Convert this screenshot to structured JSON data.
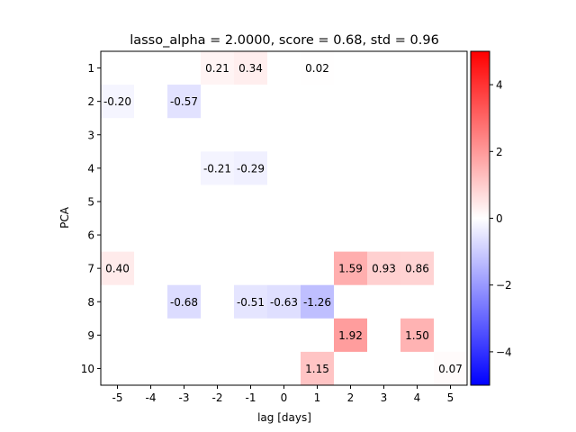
{
  "chart_data": {
    "type": "heatmap",
    "title": "lasso_alpha = 2.0000, score = 0.68, std = 0.96",
    "xlabel": "lag [days]",
    "ylabel": "PCA",
    "x_ticks": [
      -5,
      -4,
      -3,
      -2,
      -1,
      0,
      1,
      2,
      3,
      4,
      5
    ],
    "y_ticks": [
      1,
      2,
      3,
      4,
      5,
      6,
      7,
      8,
      9,
      10
    ],
    "colormap": "bwr",
    "color_range": [
      -5,
      5
    ],
    "colorbar_ticks": [
      4,
      2,
      0,
      -2,
      -4
    ],
    "colorbar_tick_labels": [
      "4",
      "2",
      "0",
      "−2",
      "−4"
    ],
    "cells": [
      {
        "x": -2,
        "y": 1,
        "value": 0.21,
        "label": "0.21"
      },
      {
        "x": -1,
        "y": 1,
        "value": 0.34,
        "label": "0.34"
      },
      {
        "x": 1,
        "y": 1,
        "value": 0.02,
        "label": "0.02"
      },
      {
        "x": -5,
        "y": 2,
        "value": -0.2,
        "label": "-0.20"
      },
      {
        "x": -3,
        "y": 2,
        "value": -0.57,
        "label": "-0.57"
      },
      {
        "x": -2,
        "y": 4,
        "value": -0.21,
        "label": "-0.21"
      },
      {
        "x": -1,
        "y": 4,
        "value": -0.29,
        "label": "-0.29"
      },
      {
        "x": -5,
        "y": 7,
        "value": 0.4,
        "label": "0.40"
      },
      {
        "x": 2,
        "y": 7,
        "value": 1.59,
        "label": "1.59"
      },
      {
        "x": 3,
        "y": 7,
        "value": 0.93,
        "label": "0.93"
      },
      {
        "x": 4,
        "y": 7,
        "value": 0.86,
        "label": "0.86"
      },
      {
        "x": -3,
        "y": 8,
        "value": -0.68,
        "label": "-0.68"
      },
      {
        "x": -1,
        "y": 8,
        "value": -0.51,
        "label": "-0.51"
      },
      {
        "x": 0,
        "y": 8,
        "value": -0.63,
        "label": "-0.63"
      },
      {
        "x": 1,
        "y": 8,
        "value": -1.26,
        "label": "-1.26"
      },
      {
        "x": 2,
        "y": 9,
        "value": 1.92,
        "label": "1.92"
      },
      {
        "x": 4,
        "y": 9,
        "value": 1.5,
        "label": "1.50"
      },
      {
        "x": 1,
        "y": 10,
        "value": 1.15,
        "label": "1.15"
      },
      {
        "x": 5,
        "y": 10,
        "value": 0.07,
        "label": "0.07"
      }
    ]
  }
}
